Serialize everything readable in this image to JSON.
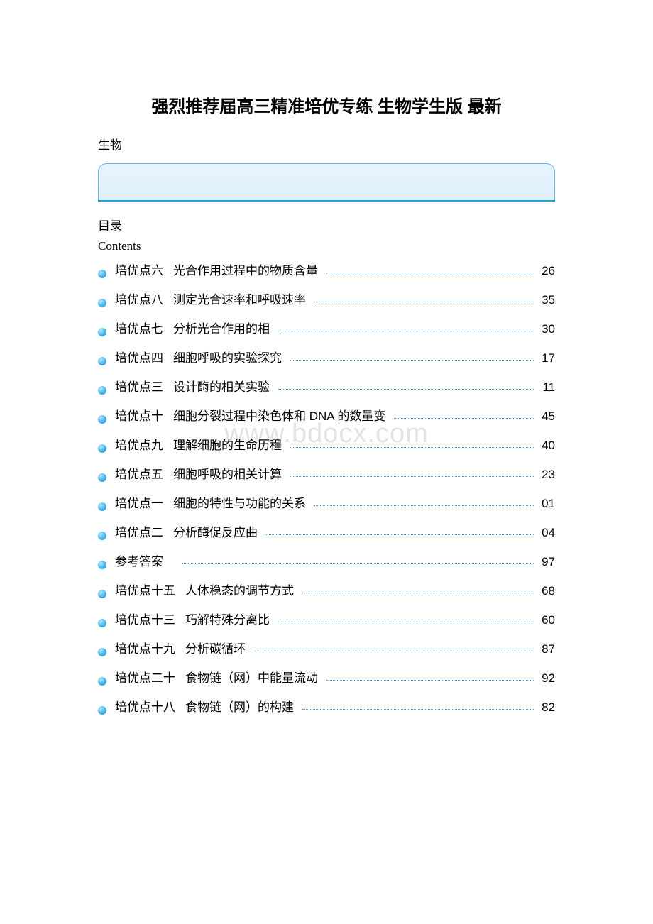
{
  "title": "强烈推荐届高三精准培优专练 生物学生版 最新",
  "subject": "生物",
  "toc_heading_zh": "目录",
  "toc_heading_en": "Contents",
  "watermark": "www.bdocx.com",
  "colors": {
    "bullet_gradient_start": "#b8e2f9",
    "bullet_gradient_mid": "#4db8ec",
    "bullet_gradient_end": "#1a8fd1",
    "dots_color": "#3aa8de",
    "banner_border": "#5bb5e8",
    "banner_bg_start": "#e8f4fd",
    "banner_bg_end": "#def0fb",
    "text_color": "#000000",
    "watermark_color": "#e2e2e2",
    "background": "#ffffff"
  },
  "toc": [
    {
      "chapter": "培优点六",
      "title": "光合作用过程中的物质含量",
      "page": "26"
    },
    {
      "chapter": "培优点八",
      "title": "测定光合速率和呼吸速率",
      "page": "35"
    },
    {
      "chapter": "培优点七",
      "title": "分析光合作用的相",
      "page": "30"
    },
    {
      "chapter": "培优点四",
      "title": "细胞呼吸的实验探究",
      "page": "17"
    },
    {
      "chapter": "培优点三",
      "title": "设计酶的相关实验",
      "page": "11"
    },
    {
      "chapter": "培优点十",
      "title": "细胞分裂过程中染色体和 DNA 的数量变",
      "page": "45"
    },
    {
      "chapter": "培优点九",
      "title": "理解细胞的生命历程",
      "page": "40"
    },
    {
      "chapter": "培优点五",
      "title": "细胞呼吸的相关计算",
      "page": "23"
    },
    {
      "chapter": "培优点一",
      "title": "细胞的特性与功能的关系",
      "page": "01"
    },
    {
      "chapter": "培优点二",
      "title": "分析酶促反应曲",
      "page": "04"
    },
    {
      "chapter": "参考答案",
      "title": "",
      "page": "97"
    },
    {
      "chapter": "培优点十五",
      "title": "人体稳态的调节方式",
      "page": "68"
    },
    {
      "chapter": "培优点十三",
      "title": "巧解特殊分离比",
      "page": "60"
    },
    {
      "chapter": "培优点十九",
      "title": "分析碳循环",
      "page": "87"
    },
    {
      "chapter": "培优点二十",
      "title": "食物链（网）中能量流动",
      "page": "92"
    },
    {
      "chapter": "培优点十八",
      "title": "食物链（网）的构建",
      "page": "82"
    }
  ]
}
